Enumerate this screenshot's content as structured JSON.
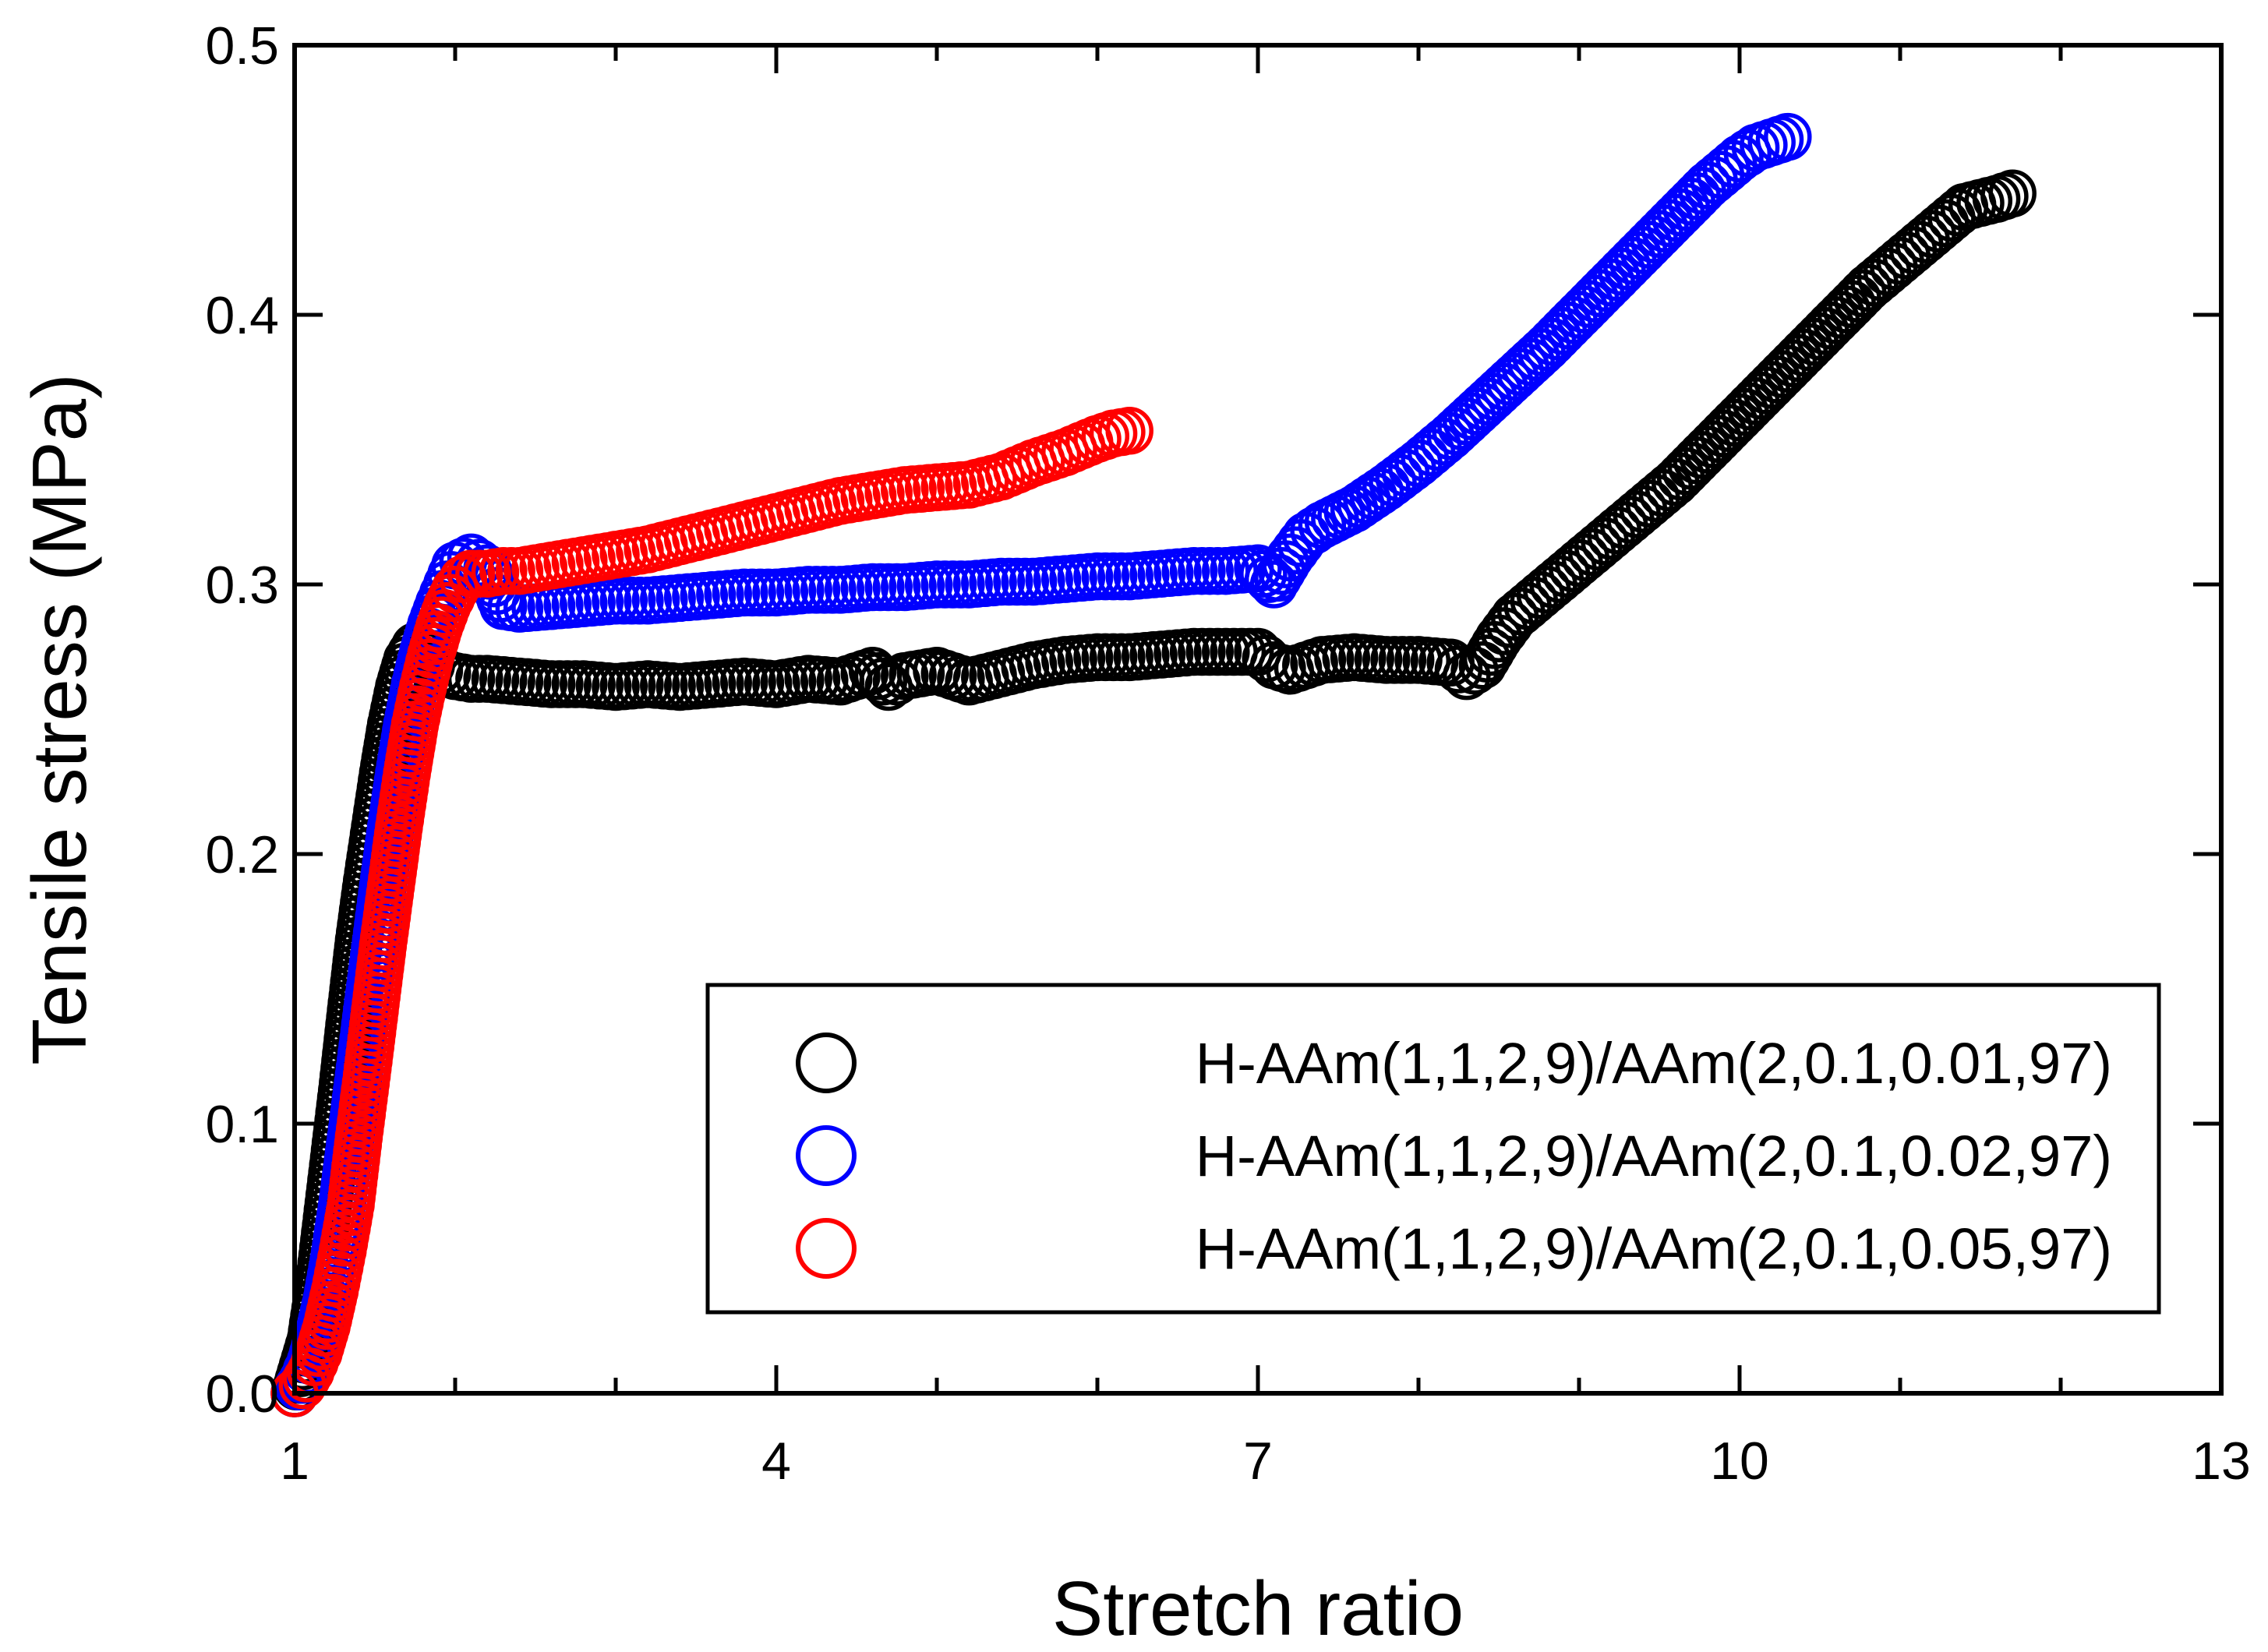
{
  "chart_data": {
    "type": "scatter",
    "title": "",
    "xlabel": "Stretch ratio",
    "ylabel": "Tensile stress (MPa)",
    "xlim": [
      1,
      13
    ],
    "ylim": [
      0,
      0.5
    ],
    "xticks": [
      1,
      4,
      7,
      10,
      13
    ],
    "xtick_labels": [
      "1",
      "4",
      "7",
      "10",
      "13"
    ],
    "yticks": [
      0,
      0.1,
      0.2,
      0.3,
      0.4,
      0.5
    ],
    "ytick_labels": [
      "0.0",
      "0.1",
      "0.2",
      "0.3",
      "0.4",
      "0.5"
    ],
    "grid": false,
    "legend_position": "bottom-right",
    "marker": "open-circle",
    "series": [
      {
        "name": "H-AAm(1,1,2,9)/AAm(2,0.1,0.01,97)",
        "color": "#000000",
        "x": [
          1.0,
          1.05,
          1.1,
          1.15,
          1.2,
          1.25,
          1.3,
          1.35,
          1.4,
          1.45,
          1.5,
          1.55,
          1.6,
          1.65,
          1.7,
          1.75,
          1.8,
          1.85,
          1.9,
          2.0,
          2.1,
          2.2,
          2.4,
          2.6,
          2.8,
          3.0,
          3.2,
          3.4,
          3.6,
          3.8,
          4.0,
          4.2,
          4.4,
          4.6,
          4.7,
          4.8,
          5.0,
          5.2,
          5.4,
          5.6,
          5.8,
          6.0,
          6.2,
          6.4,
          6.6,
          6.8,
          7.0,
          7.1,
          7.2,
          7.4,
          7.6,
          7.8,
          8.0,
          8.2,
          8.3,
          8.4,
          8.5,
          8.6,
          8.8,
          9.0,
          9.2,
          9.4,
          9.6,
          9.8,
          10.0,
          10.2,
          10.4,
          10.6,
          10.8,
          11.0,
          11.2,
          11.4,
          11.6,
          11.7
        ],
        "y": [
          0.0,
          0.01,
          0.02,
          0.04,
          0.065,
          0.09,
          0.115,
          0.142,
          0.168,
          0.19,
          0.21,
          0.23,
          0.248,
          0.262,
          0.272,
          0.277,
          0.274,
          0.27,
          0.268,
          0.266,
          0.265,
          0.265,
          0.264,
          0.263,
          0.263,
          0.262,
          0.263,
          0.262,
          0.263,
          0.264,
          0.263,
          0.265,
          0.264,
          0.268,
          0.262,
          0.266,
          0.268,
          0.264,
          0.267,
          0.27,
          0.272,
          0.273,
          0.273,
          0.274,
          0.275,
          0.275,
          0.275,
          0.27,
          0.268,
          0.272,
          0.273,
          0.272,
          0.272,
          0.271,
          0.266,
          0.27,
          0.28,
          0.288,
          0.298,
          0.308,
          0.318,
          0.328,
          0.338,
          0.35,
          0.362,
          0.374,
          0.386,
          0.398,
          0.41,
          0.42,
          0.43,
          0.44,
          0.443,
          0.445
        ]
      },
      {
        "name": "H-AAm(1,1,2,9)/AAm(2,0.1,0.02,97)",
        "color": "#0000ff",
        "x": [
          1.0,
          1.05,
          1.1,
          1.15,
          1.2,
          1.25,
          1.3,
          1.35,
          1.4,
          1.45,
          1.5,
          1.55,
          1.6,
          1.65,
          1.7,
          1.75,
          1.8,
          1.85,
          1.9,
          1.95,
          2.0,
          2.1,
          2.2,
          2.3,
          2.4,
          2.6,
          2.8,
          3.0,
          3.2,
          3.4,
          3.6,
          3.8,
          4.0,
          4.2,
          4.4,
          4.6,
          4.8,
          5.0,
          5.2,
          5.4,
          5.6,
          5.8,
          6.0,
          6.2,
          6.4,
          6.6,
          6.8,
          7.0,
          7.1,
          7.2,
          7.3,
          7.4,
          7.6,
          7.8,
          8.0,
          8.2,
          8.4,
          8.6,
          8.8,
          9.0,
          9.2,
          9.4,
          9.6,
          9.8,
          10.0,
          10.1,
          10.2,
          10.3
        ],
        "y": [
          0.0,
          0.005,
          0.012,
          0.022,
          0.035,
          0.052,
          0.072,
          0.095,
          0.118,
          0.142,
          0.165,
          0.188,
          0.21,
          0.23,
          0.248,
          0.263,
          0.275,
          0.285,
          0.293,
          0.3,
          0.307,
          0.31,
          0.306,
          0.292,
          0.291,
          0.292,
          0.293,
          0.294,
          0.294,
          0.295,
          0.296,
          0.297,
          0.297,
          0.298,
          0.298,
          0.299,
          0.299,
          0.3,
          0.3,
          0.301,
          0.301,
          0.302,
          0.303,
          0.303,
          0.304,
          0.305,
          0.305,
          0.306,
          0.3,
          0.31,
          0.318,
          0.322,
          0.328,
          0.336,
          0.345,
          0.355,
          0.366,
          0.377,
          0.388,
          0.4,
          0.412,
          0.424,
          0.436,
          0.448,
          0.458,
          0.462,
          0.464,
          0.466
        ]
      },
      {
        "name": "H-AAm(1,1,2,9)/AAm(2,0.1,0.05,97)",
        "color": "#ff0000",
        "x": [
          1.0,
          1.05,
          1.1,
          1.15,
          1.2,
          1.25,
          1.3,
          1.35,
          1.4,
          1.45,
          1.5,
          1.55,
          1.6,
          1.65,
          1.7,
          1.75,
          1.8,
          1.85,
          1.9,
          1.95,
          2.0,
          2.05,
          2.1,
          2.2,
          2.3,
          2.4,
          2.6,
          2.8,
          3.0,
          3.2,
          3.4,
          3.6,
          3.8,
          4.0,
          4.2,
          4.4,
          4.6,
          4.8,
          5.0,
          5.2,
          5.4,
          5.6,
          5.8,
          6.0,
          6.1,
          6.2
        ],
        "y": [
          0.0,
          0.003,
          0.008,
          0.015,
          0.025,
          0.038,
          0.053,
          0.07,
          0.095,
          0.118,
          0.142,
          0.166,
          0.188,
          0.21,
          0.23,
          0.248,
          0.262,
          0.274,
          0.284,
          0.292,
          0.298,
          0.302,
          0.304,
          0.304,
          0.305,
          0.305,
          0.307,
          0.309,
          0.311,
          0.313,
          0.316,
          0.319,
          0.322,
          0.325,
          0.328,
          0.331,
          0.333,
          0.335,
          0.336,
          0.337,
          0.34,
          0.345,
          0.349,
          0.354,
          0.356,
          0.357
        ]
      }
    ]
  }
}
